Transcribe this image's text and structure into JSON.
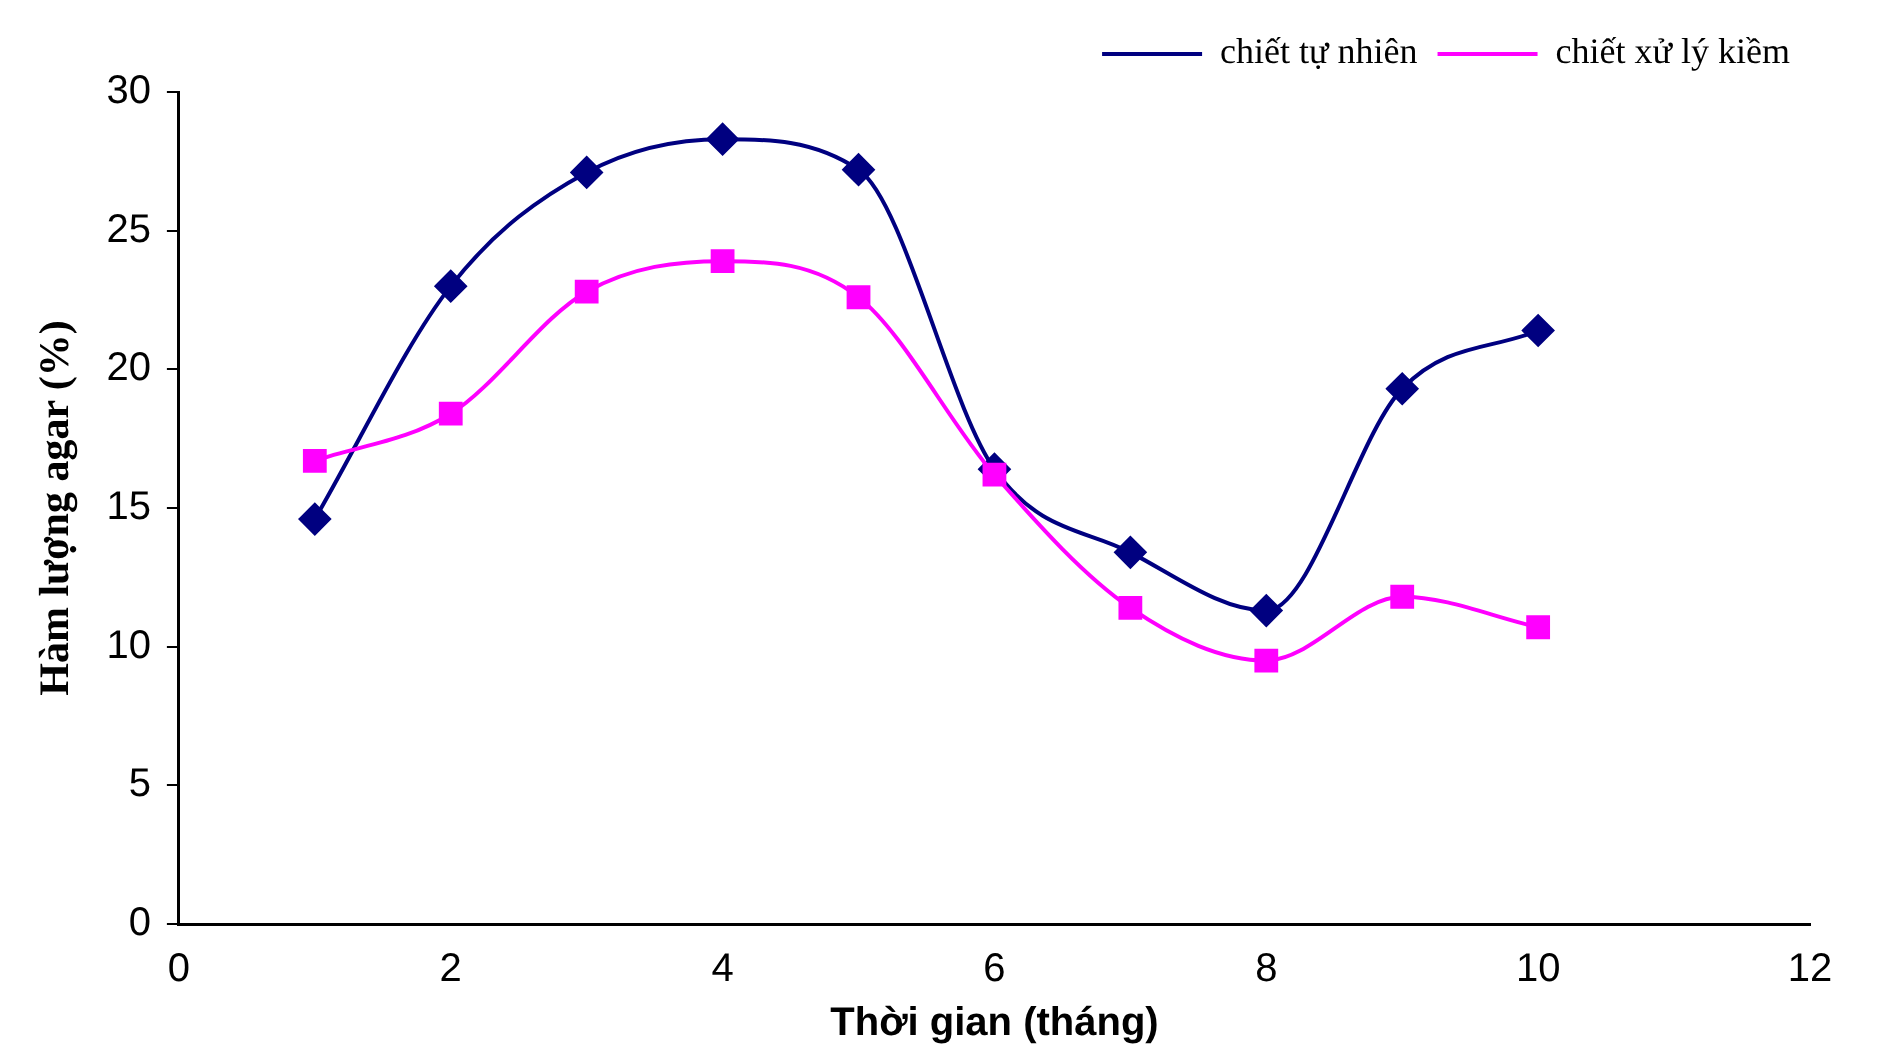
{
  "chart_data": {
    "type": "line",
    "xlabel": "Thời gian (tháng)",
    "ylabel": "Hàm lượng agar (%)",
    "x": [
      1,
      2,
      3,
      4,
      5,
      6,
      7,
      8,
      9,
      10
    ],
    "series": [
      {
        "name": "chiết tự nhiên",
        "color": "#000080",
        "marker": "diamond",
        "values": [
          14.6,
          23.0,
          27.1,
          28.3,
          27.2,
          16.4,
          13.4,
          11.3,
          19.3,
          21.4
        ]
      },
      {
        "name": "chiết xử lý kiềm",
        "color": "#ff00ff",
        "marker": "square",
        "values": [
          16.7,
          18.4,
          22.8,
          23.9,
          22.6,
          16.2,
          11.4,
          9.5,
          11.8,
          10.7
        ]
      }
    ],
    "xlim": [
      0,
      12
    ],
    "xticks": [
      0,
      2,
      4,
      6,
      8,
      10,
      12
    ],
    "ylim": [
      0,
      30
    ],
    "yticks": [
      0,
      5,
      10,
      15,
      20,
      25,
      30
    ],
    "grid": false,
    "legend": "top right",
    "line_style": "solid"
  }
}
